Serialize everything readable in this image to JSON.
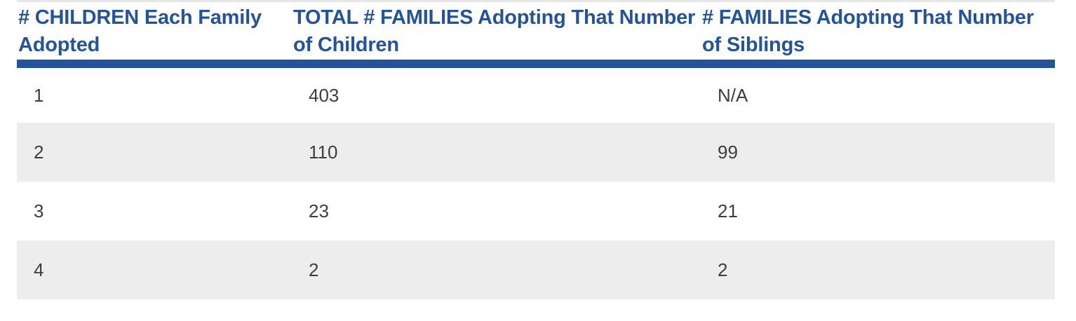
{
  "table": {
    "headers": [
      "# CHILDREN Each Family Adopted",
      "TOTAL # FAMILIES Adopting That Number of Children",
      "# FAMILIES Adopting That Number of Siblings"
    ],
    "rows": [
      [
        "1",
        "403",
        "N/A"
      ],
      [
        "2",
        "110",
        "99"
      ],
      [
        "3",
        "23",
        "21"
      ],
      [
        "4",
        "2",
        "2"
      ]
    ]
  },
  "colors": {
    "header_text": "#23539a",
    "header_rule": "#23539a",
    "stripe": "#ededed",
    "cell_text": "#3d3d3d"
  }
}
